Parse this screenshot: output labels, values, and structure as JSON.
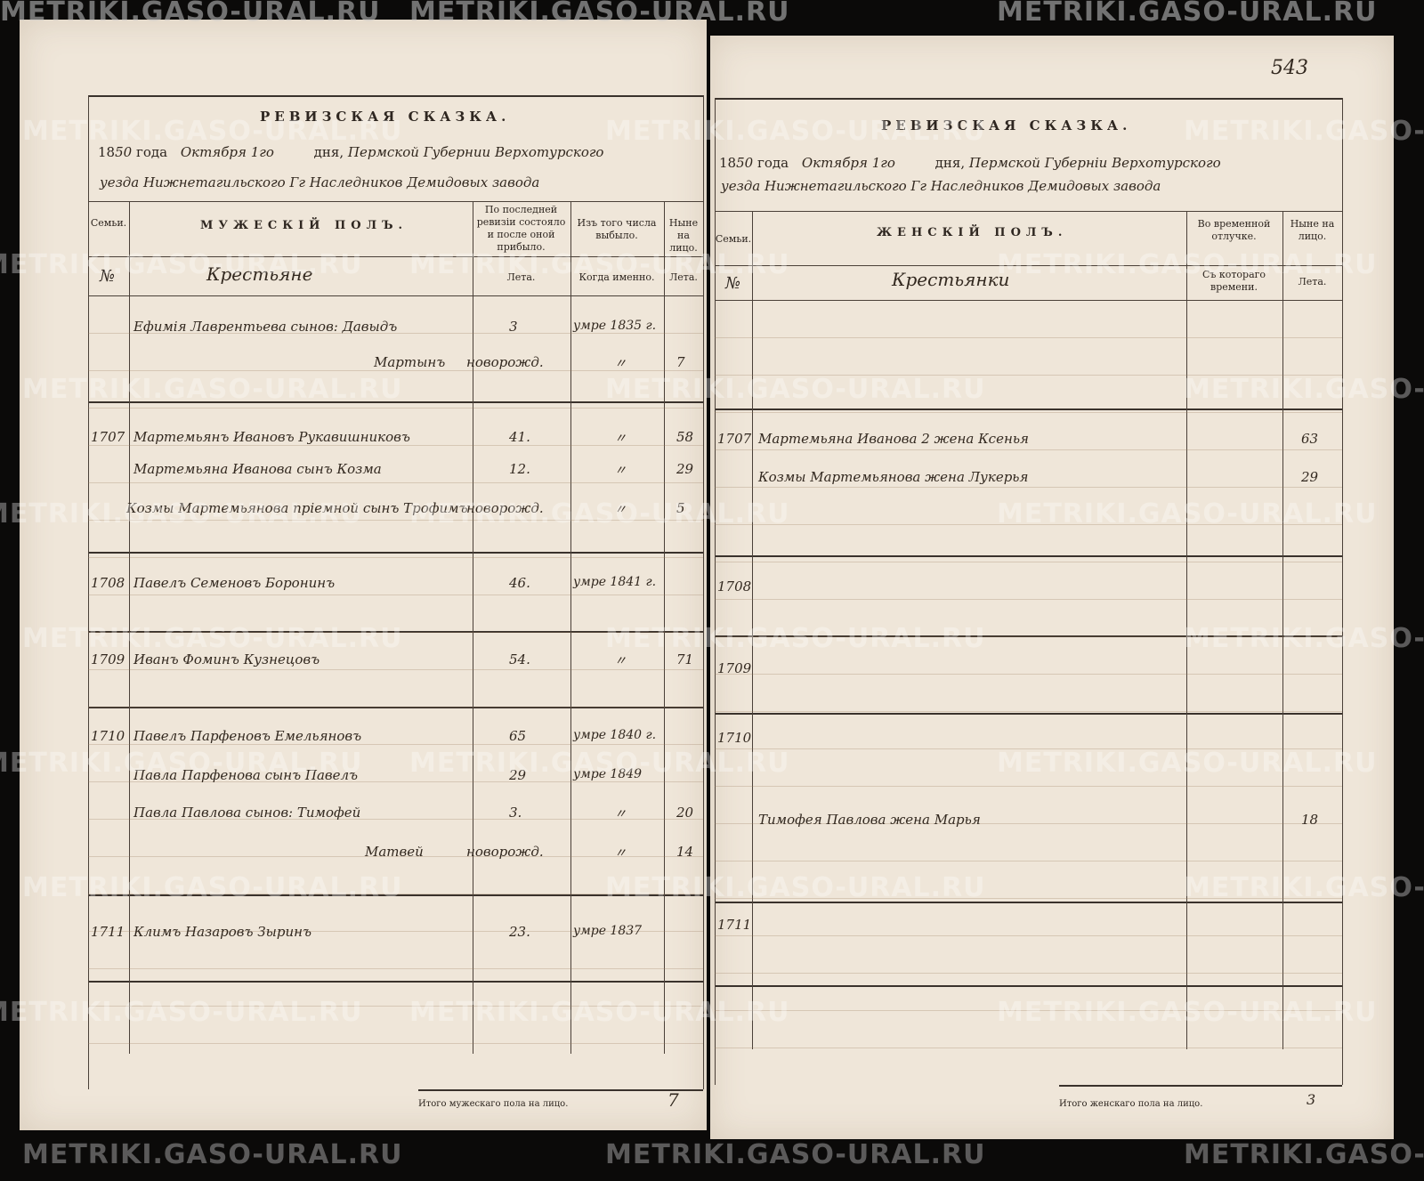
{
  "watermark": "METRIKI.GASO-URAL.RU",
  "page_number": "543",
  "left": {
    "title": "РЕВИЗСКАЯ СКАЗКА.",
    "year_prefix": "18",
    "year_hand": "50",
    "year_label": "года",
    "date_hand": "Октября 1го",
    "day_label": "дня,",
    "place_line1": "Пермской Губернии Верхотурского",
    "place_line2": "уезда Нижнетагильского Гг Наследников Демидовых завода",
    "col_family": "Семьи.",
    "col_no": "№",
    "col_male": "МУЖЕСКІЙ ПОЛЪ.",
    "estate": "Крестьяне",
    "col_prev": "По последней ревизіи состояло и после оной прибыло.",
    "col_prev_sub": "Лета.",
    "col_left": "Изъ того числа выбыло.",
    "col_left_sub": "Когда именно.",
    "col_now": "Ныне на лицо.",
    "col_now_sub": "Лета.",
    "rows": [
      {
        "family": "",
        "name": "Ефимія Лаврентьева сынов: Давыдъ",
        "age_prev": "3",
        "left": "умре 1835 г.",
        "age_now": ""
      },
      {
        "family": "",
        "name": "Мартынъ",
        "age_prev": "новорожд.",
        "left": "〃",
        "age_now": "7"
      },
      {
        "family": "1707",
        "name": "Мартемьянъ Ивановъ Рукавишниковъ",
        "age_prev": "41.",
        "left": "〃",
        "age_now": "58"
      },
      {
        "family": "",
        "name": "Мартемьяна Иванова сынъ Козма",
        "age_prev": "12.",
        "left": "〃",
        "age_now": "29"
      },
      {
        "family": "",
        "name": "Козмы Мартемьянова пріемной сынъ Трофимъ",
        "age_prev": "новорожд.",
        "left": "〃",
        "age_now": "5"
      },
      {
        "family": "1708",
        "name": "Павелъ Семеновъ Боронинъ",
        "age_prev": "46.",
        "left": "умре 1841 г.",
        "age_now": ""
      },
      {
        "family": "1709",
        "name": "Иванъ Фоминъ Кузнецовъ",
        "age_prev": "54.",
        "left": "〃",
        "age_now": "71"
      },
      {
        "family": "1710",
        "name": "Павелъ Парфеновъ Емельяновъ",
        "age_prev": "65",
        "left": "умре 1840 г.",
        "age_now": ""
      },
      {
        "family": "",
        "name": "Павла Парфенова сынъ Павелъ",
        "age_prev": "29",
        "left": "умре 1849",
        "age_now": ""
      },
      {
        "family": "",
        "name": "Павла Павлова сынов: Тимофей",
        "age_prev": "3.",
        "left": "〃",
        "age_now": "20"
      },
      {
        "family": "",
        "name": "Матвей",
        "age_prev": "новорожд.",
        "left": "〃",
        "age_now": "14"
      },
      {
        "family": "1711",
        "name": "Климъ Назаровъ Зыринъ",
        "age_prev": "23.",
        "left": "умре 1837",
        "age_now": ""
      }
    ],
    "total_label": "Итого мужескаго пола на лицо.",
    "total_value": "7"
  },
  "right": {
    "title": "РЕВИЗСКАЯ СКАЗКА.",
    "year_prefix": "18",
    "year_hand": "50",
    "year_label": "года",
    "date_hand": "Октября 1го",
    "day_label": "дня,",
    "place_line1": "Пермской Губерніи Верхотурского",
    "place_line2": "уезда Нижнетагильского Гг Наследников Демидовых завода",
    "col_family": "Семьи.",
    "col_no": "№",
    "col_female": "ЖЕНСКІЙ ПОЛЪ.",
    "estate": "Крестьянки",
    "col_absent": "Во временной отлучке.",
    "col_absent_sub": "Съ котораго времени.",
    "col_now": "Ныне на лицо.",
    "col_now_sub": "Лета.",
    "rows": [
      {
        "family": "1707",
        "name": "Мартемьяна Иванова 2 жена Ксенья",
        "age_now": "63"
      },
      {
        "family": "",
        "name": "Козмы Мартемьянова жена Лукерья",
        "age_now": "29"
      },
      {
        "family": "1708",
        "name": "",
        "age_now": ""
      },
      {
        "family": "1709",
        "name": "",
        "age_now": ""
      },
      {
        "family": "1710",
        "name": "",
        "age_now": ""
      },
      {
        "family": "",
        "name": "Тимофея Павлова жена Марья",
        "age_now": "18"
      },
      {
        "family": "1711",
        "name": "",
        "age_now": ""
      }
    ],
    "total_label": "Итого женскаго пола на лицо.",
    "total_value": "3"
  }
}
